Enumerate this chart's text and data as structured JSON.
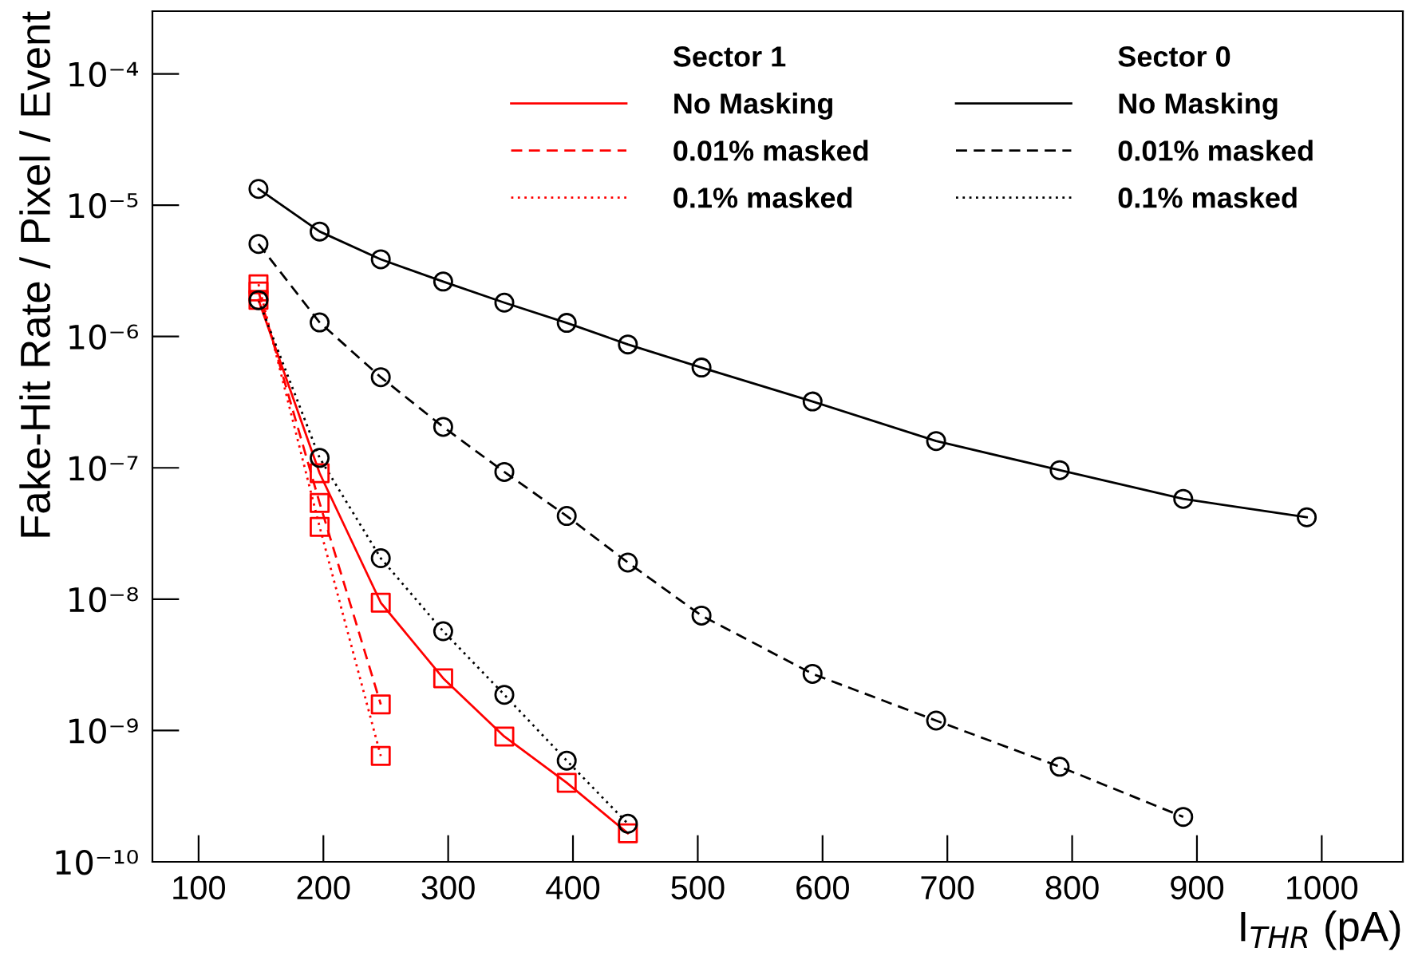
{
  "chart_data": {
    "type": "line",
    "xlabel": "I$_{THR}$ (pA)",
    "ylabel": "Fake-Hit Rate / Pixel / Event",
    "annotations": [
      "Sector 1",
      "Sector 0"
    ],
    "log": "y",
    "grid": false,
    "legend": "top right",
    "xlim": [
      63,
      1065
    ],
    "xticks": [
      100,
      200,
      300,
      400,
      500,
      600,
      700,
      800,
      900,
      1000
    ],
    "ylim": [
      1e-10,
      0.0003
    ],
    "yticks": [
      {
        "value": 1e-10,
        "label": "10⁻¹⁰"
      },
      {
        "value": 1e-09,
        "label": "10⁻⁹"
      },
      {
        "value": 1e-08,
        "label": "10⁻⁸"
      },
      {
        "value": 1e-07,
        "label": "10⁻⁷"
      },
      {
        "value": 1e-06,
        "label": "10⁻⁶"
      },
      {
        "value": 1e-05,
        "label": "10⁻⁵"
      },
      {
        "value": 0.0001,
        "label": "10⁻⁴"
      }
    ],
    "x": [
      148,
      197,
      246,
      296,
      345,
      395,
      444,
      503,
      592,
      691,
      790,
      889,
      988
    ],
    "series": [
      {
        "name": "No Masking",
        "color": "#ff0000",
        "marker": "square",
        "line_style": "solid",
        "values": [
          1.9e-06,
          9.1e-08,
          9.4e-09,
          2.5e-09,
          9e-10,
          4e-10,
          1.65e-10,
          null,
          null,
          null,
          null,
          null,
          null
        ]
      },
      {
        "name": "0.01% masked",
        "color": "#ff0000",
        "marker": "square",
        "line_style": "dashed",
        "values": [
          2.2e-06,
          5.4e-08,
          1.58e-09,
          null,
          null,
          null,
          null,
          null,
          null,
          null,
          null,
          null,
          null
        ]
      },
      {
        "name": "0.1% masked",
        "color": "#ff0000",
        "marker": "square",
        "line_style": "dotted",
        "values": [
          2.5e-06,
          3.55e-08,
          6.4e-10,
          null,
          null,
          null,
          null,
          null,
          null,
          null,
          null,
          null,
          null
        ]
      },
      {
        "name": "No Masking",
        "color": "#000000",
        "marker": "circle",
        "line_style": "solid",
        "values": [
          1.33e-05,
          6.3e-06,
          3.87e-06,
          2.62e-06,
          1.81e-06,
          1.27e-06,
          8.7e-07,
          5.8e-07,
          3.2e-07,
          1.6e-07,
          9.6e-08,
          5.8e-08,
          4.2e-08
        ]
      },
      {
        "name": "0.01% masked",
        "color": "#000000",
        "marker": "circle",
        "line_style": "dashed",
        "values": [
          5.07e-06,
          1.28e-06,
          4.9e-07,
          2.05e-07,
          9.3e-08,
          4.3e-08,
          1.9e-08,
          7.5e-09,
          2.7e-09,
          1.19e-09,
          5.3e-10,
          2.2e-10,
          null
        ]
      },
      {
        "name": "0.1% masked",
        "color": "#000000",
        "marker": "circle",
        "line_style": "dotted",
        "values": [
          1.89e-06,
          1.19e-07,
          2.05e-08,
          5.7e-09,
          1.87e-09,
          5.9e-10,
          1.95e-10,
          null,
          null,
          null,
          null,
          null,
          null
        ]
      }
    ]
  }
}
